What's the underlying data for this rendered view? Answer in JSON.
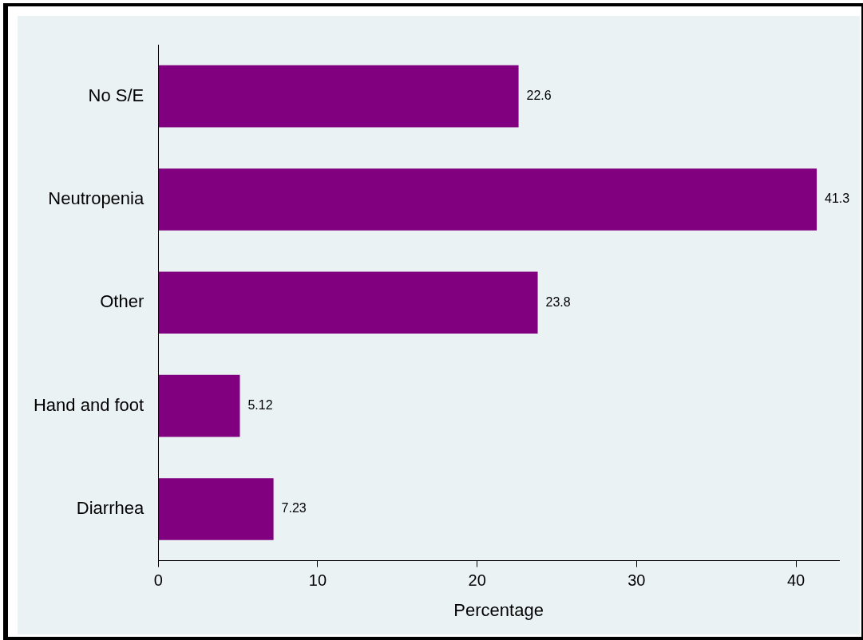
{
  "chart_data": {
    "type": "bar",
    "orientation": "horizontal",
    "xlabel": "Percentage",
    "categories": [
      "No S/E",
      "Neutropenia",
      "Other",
      "Hand and foot",
      "Diarrhea"
    ],
    "values": [
      22.6,
      41.3,
      23.8,
      5.12,
      7.23
    ],
    "color": "#800080",
    "xlim": [
      0,
      42.7
    ],
    "xticks": [
      0,
      10,
      20,
      30,
      40
    ],
    "grid": false,
    "legend": false,
    "data_labels": true
  }
}
